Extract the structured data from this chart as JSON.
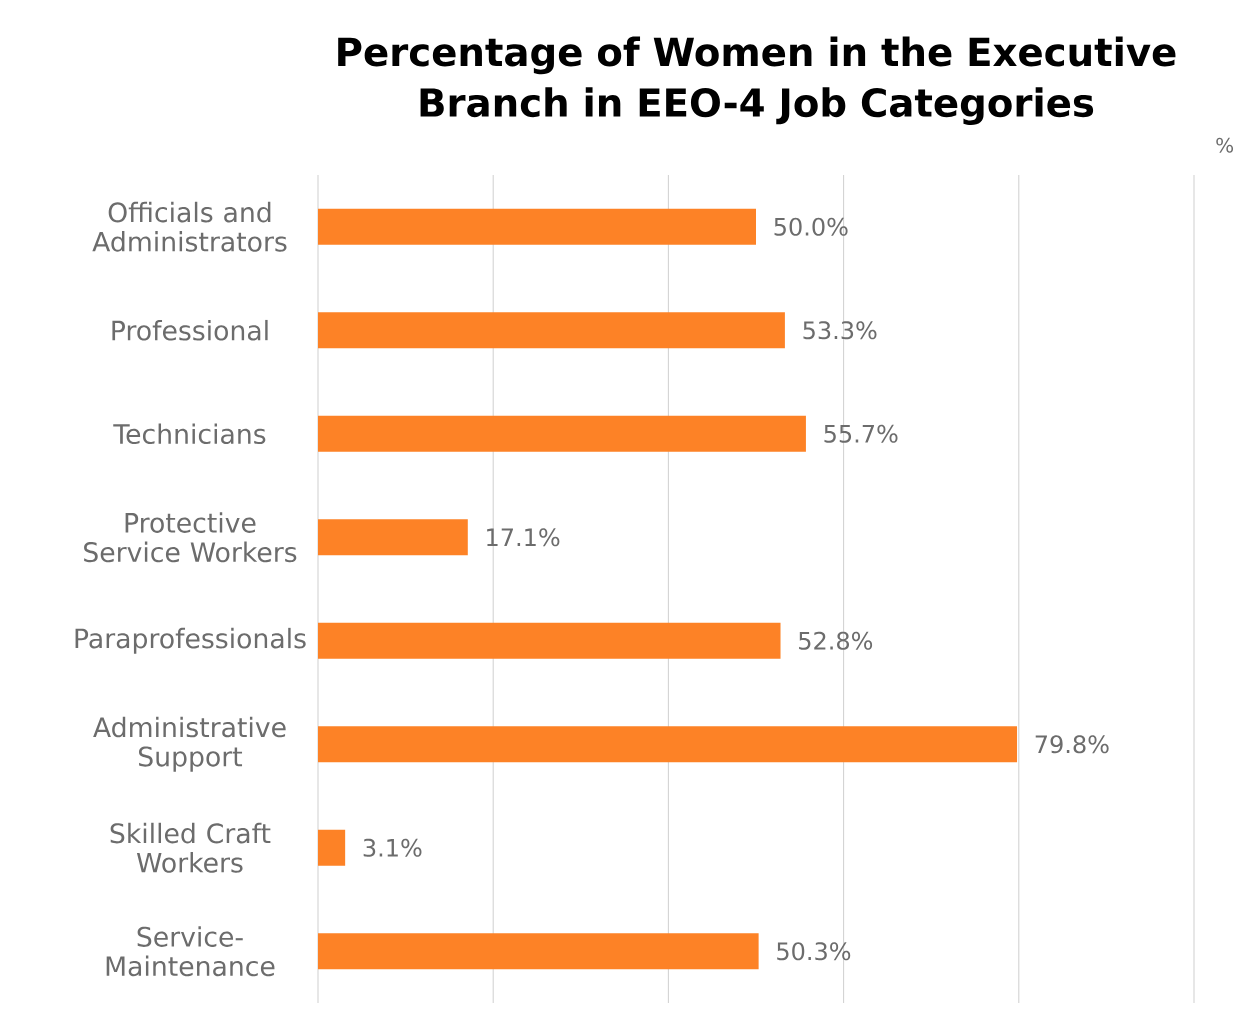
{
  "chart_data": {
    "type": "bar",
    "orientation": "horizontal",
    "title": "Percentage of Women in the Executive Branch in EEO-4 Job Categories",
    "categories": [
      "Officials and Administrators",
      "Professional",
      "Technicians",
      "Protective Service Workers",
      "Paraprofessionals",
      "Administrative Support",
      "Skilled Craft Workers",
      "Service-Maintenance"
    ],
    "values": [
      50.0,
      53.3,
      55.7,
      17.1,
      52.8,
      79.8,
      3.1,
      50.3
    ],
    "value_labels": [
      "50.0%",
      "53.3%",
      "55.7%",
      "17.1%",
      "52.8%",
      "79.8%",
      "3.1%",
      "50.3%"
    ],
    "color": "#fd8226",
    "xlim": [
      0,
      100
    ],
    "xticks": [
      {
        "value": 0,
        "label": null
      },
      {
        "value": 20,
        "label": null
      },
      {
        "value": 40,
        "label": null
      },
      {
        "value": 60,
        "label": null
      },
      {
        "value": 80,
        "label": null
      },
      {
        "value": 100,
        "label": null
      }
    ],
    "tick_labels": "y",
    "grid": "x",
    "annotations": [
      "%"
    ]
  }
}
